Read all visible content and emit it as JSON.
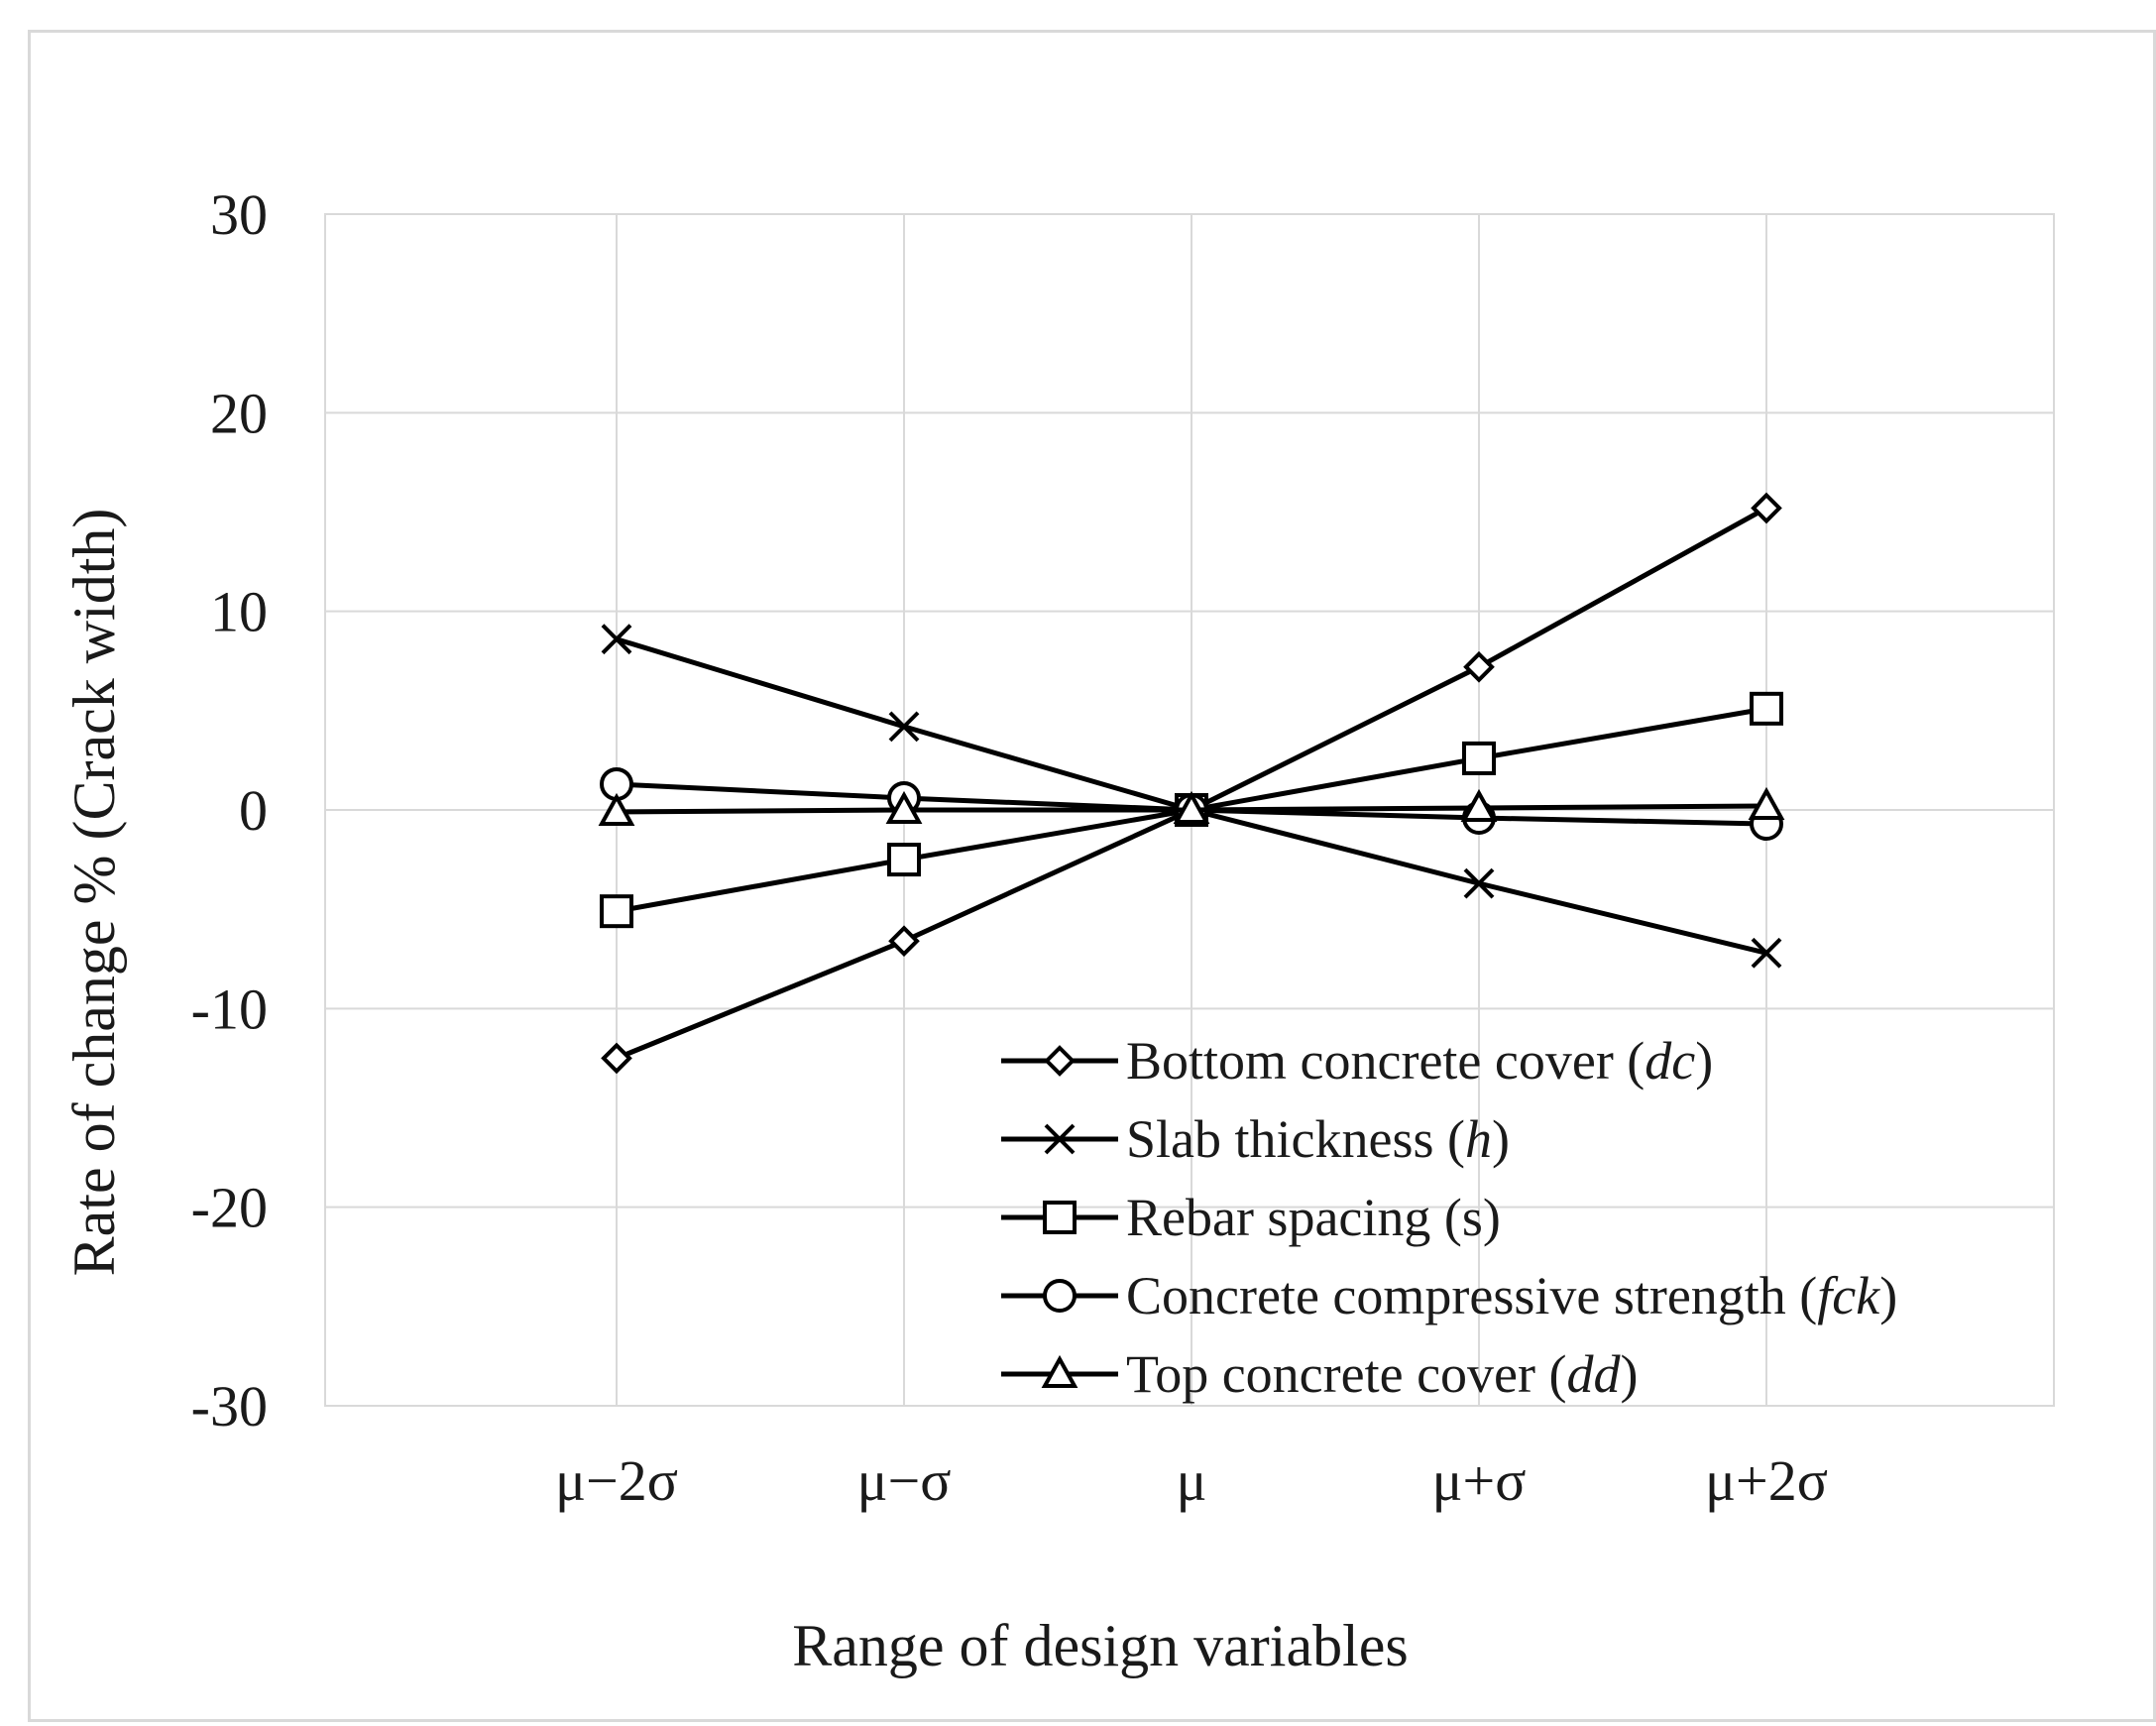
{
  "chart_data": {
    "type": "line",
    "title": "",
    "xlabel": "Range of design variables",
    "ylabel": "Rate of change % (Crack width)",
    "categories": [
      "μ−2σ",
      "μ−σ",
      "μ",
      "μ+σ",
      "μ+2σ"
    ],
    "ylim": [
      -30,
      30
    ],
    "yticks": [
      30,
      20,
      10,
      0,
      -10,
      -20,
      -30
    ],
    "yticklabels": [
      "30",
      "20",
      "10",
      "0",
      "-10",
      "-20",
      "-30"
    ],
    "grid": true,
    "legend_position": "bottom-right",
    "series": [
      {
        "name": "Bottom concrete cover (dc)",
        "label_main": "Bottom concrete cover (",
        "label_var": "dc",
        "label_end": ")",
        "marker": "diamond",
        "values": [
          -12.5,
          -6.6,
          0,
          7.2,
          15.2
        ]
      },
      {
        "name": "Slab thickness (h)",
        "label_main": "Slab thickness (",
        "label_var": "h",
        "label_end": ")",
        "marker": "x",
        "values": [
          8.6,
          4.2,
          0,
          -3.7,
          -7.2
        ]
      },
      {
        "name": "Rebar spacing (s)",
        "label_main": "Rebar spacing (s)",
        "label_var": "",
        "label_end": "",
        "marker": "square",
        "values": [
          -5.1,
          -2.5,
          0,
          2.6,
          5.1
        ]
      },
      {
        "name": "Concrete compressive strength (fck)",
        "label_main": "Concrete compressive strength (",
        "label_var": "fck",
        "label_end": ")",
        "marker": "circle",
        "values": [
          1.3,
          0.6,
          0,
          -0.4,
          -0.7
        ]
      },
      {
        "name": "Top concrete cover (dd)",
        "label_main": "Top concrete cover (",
        "label_var": "dd",
        "label_end": ")",
        "marker": "triangle",
        "values": [
          -0.1,
          0.0,
          0,
          0.1,
          0.2
        ]
      }
    ]
  }
}
